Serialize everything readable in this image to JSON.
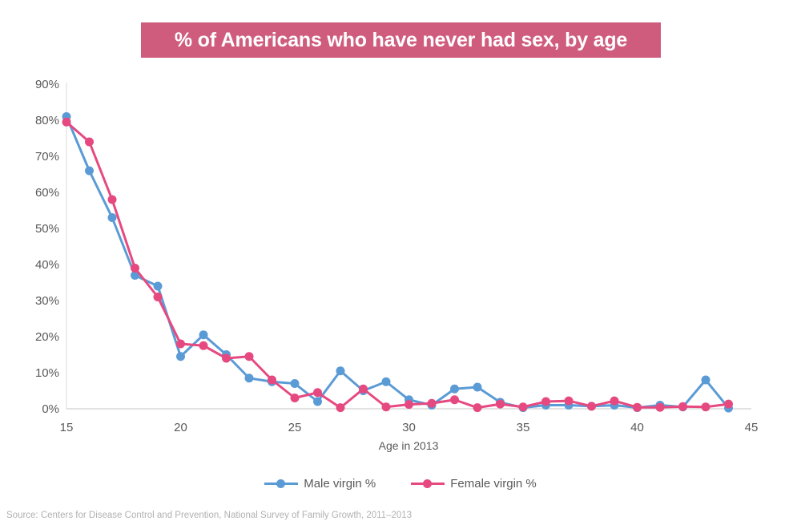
{
  "title": {
    "text": "% of Americans who have never had sex, by age"
  },
  "source": "Source: Centers for Disease Control and Prevention, National Survey of Family Growth, 2011–2013",
  "colors": {
    "title_bg": "#cf5b7d",
    "title_text": "#ffffff",
    "male": "#5b9bd5",
    "female": "#e64980",
    "axis_text": "#595959",
    "axis_line": "#d9d9d9",
    "source_text": "#b1b1b1"
  },
  "chart_data": {
    "type": "line",
    "title": "% of Americans who have never had sex, by age",
    "xlabel": "Age in 2013",
    "ylabel": "",
    "x": [
      15,
      16,
      17,
      18,
      19,
      20,
      21,
      22,
      23,
      24,
      25,
      26,
      27,
      28,
      29,
      30,
      31,
      32,
      33,
      34,
      35,
      36,
      37,
      38,
      39,
      40,
      41,
      42,
      43,
      44
    ],
    "series": [
      {
        "name": "Male virgin %",
        "color": "#5b9bd5",
        "values": [
          81,
          66,
          53,
          37,
          34,
          14.5,
          20.5,
          15,
          8.5,
          7.5,
          7,
          2,
          10.5,
          5,
          7.5,
          2.5,
          1,
          5.5,
          6,
          1.8,
          0.3,
          1,
          1,
          0.7,
          1,
          0.3,
          1,
          0.5,
          8,
          0.2
        ]
      },
      {
        "name": "Female virgin %",
        "color": "#e64980",
        "values": [
          79.5,
          74,
          58,
          39,
          31,
          18,
          17.5,
          14,
          14.5,
          8,
          3,
          4.5,
          0.3,
          5.5,
          0.5,
          1.2,
          1.5,
          2.5,
          0.3,
          1.3,
          0.5,
          2,
          2.2,
          0.7,
          2.2,
          0.4,
          0.4,
          0.6,
          0.5,
          1.3
        ]
      }
    ],
    "xlim": [
      15,
      45
    ],
    "ylim": [
      0,
      90
    ],
    "x_ticks": [
      15,
      20,
      25,
      30,
      35,
      40,
      45
    ],
    "y_ticks": [
      0,
      10,
      20,
      30,
      40,
      50,
      60,
      70,
      80,
      90
    ],
    "y_tick_suffix": "%",
    "grid": false,
    "legend_position": "bottom"
  }
}
